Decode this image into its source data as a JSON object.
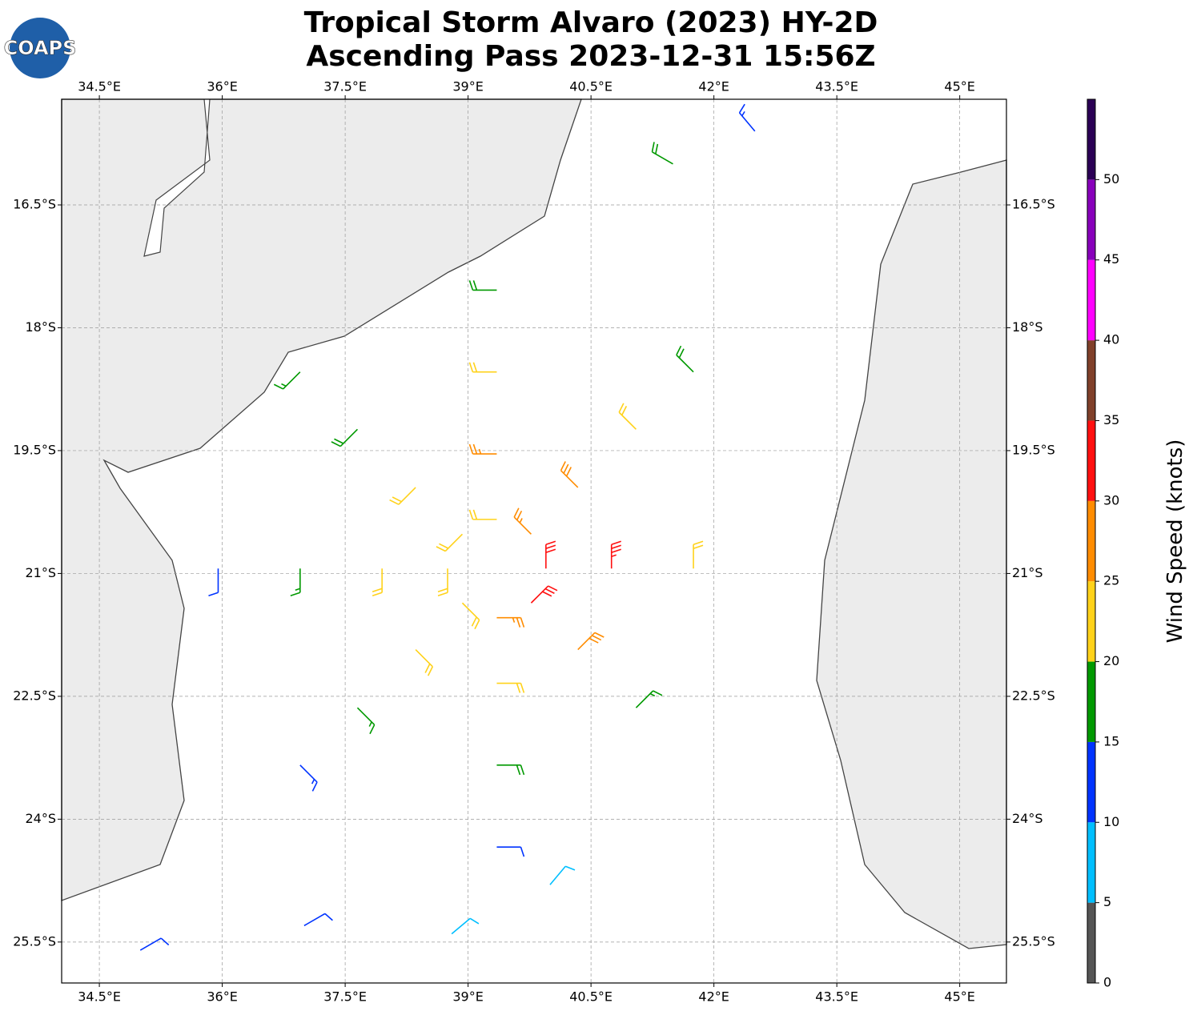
{
  "map": {
    "title": [
      "Tropical Storm Alvaro (2023) HY-2D",
      "Ascending Pass 2023-12-31 15:56Z"
    ],
    "logo_text": "COAPS",
    "xlim": [
      34.04,
      45.57
    ],
    "ylim": [
      -26.0,
      -15.21
    ],
    "xticks": [
      {
        "value": 34.5,
        "label": "34.5°E"
      },
      {
        "value": 36,
        "label": "36°E"
      },
      {
        "value": 37.5,
        "label": "37.5°E"
      },
      {
        "value": 39,
        "label": "39°E"
      },
      {
        "value": 40.5,
        "label": "40.5°E"
      },
      {
        "value": 42,
        "label": "42°E"
      },
      {
        "value": 43.5,
        "label": "43.5°E"
      },
      {
        "value": 45,
        "label": "45°E"
      }
    ],
    "yticks": [
      {
        "value": -16.5,
        "label": "16.5°S"
      },
      {
        "value": -18,
        "label": "18°S"
      },
      {
        "value": -19.5,
        "label": "19.5°S"
      },
      {
        "value": -21,
        "label": "21°S"
      },
      {
        "value": -22.5,
        "label": "22.5°S"
      },
      {
        "value": -24,
        "label": "24°S"
      },
      {
        "value": -25.5,
        "label": "25.5°S"
      }
    ],
    "grid": true,
    "colorbar": {
      "label": "Wind Speed (knots)",
      "bounds": [
        0,
        5,
        10,
        15,
        20,
        25,
        30,
        35,
        40,
        45,
        50,
        55
      ],
      "colors": [
        "#555555",
        "#00bfff",
        "#0033ff",
        "#009900",
        "#ffd21a",
        "#ff8c00",
        "#ff1010",
        "#80402a",
        "#ff00ff",
        "#8800bb",
        "#2b0055"
      ],
      "ticks": [
        0,
        5,
        10,
        15,
        20,
        25,
        30,
        35,
        40,
        45,
        50
      ]
    },
    "barbs": {
      "lon": [
        39.95,
        39.77,
        39.35,
        38.93,
        38.75,
        38.93,
        39.35,
        39.77,
        40.75,
        40.34,
        39.35,
        38.36,
        37.95,
        38.36,
        39.35,
        40.34,
        41.75,
        41.05,
        39.35,
        37.65,
        36.95,
        37.65,
        39.35,
        41.05,
        41.75,
        39.35,
        36.95,
        35.95,
        36.95,
        39.35,
        41.5,
        42.5,
        37.0,
        35.0,
        38.8,
        40.0
      ],
      "lat": [
        -20.94,
        -20.52,
        -20.34,
        -20.52,
        -20.94,
        -21.36,
        -21.54,
        -21.36,
        -20.94,
        -19.95,
        -19.54,
        -19.95,
        -20.94,
        -21.93,
        -22.34,
        -21.93,
        -20.94,
        -19.24,
        -18.54,
        -19.24,
        -20.94,
        -22.64,
        -23.34,
        -22.64,
        -18.54,
        -17.54,
        -18.54,
        -20.94,
        -23.34,
        -24.34,
        -16.0,
        -15.6,
        -25.3,
        -25.6,
        -25.4,
        -24.8
      ],
      "speed": [
        30,
        27,
        22,
        22,
        20,
        22,
        25,
        32,
        33,
        28,
        25,
        22,
        22,
        20,
        22,
        28,
        22,
        22,
        22,
        18,
        17,
        17,
        18,
        16,
        18,
        18,
        16,
        12,
        14,
        12,
        18,
        13,
        12,
        12,
        8,
        8
      ],
      "direction": [
        0,
        315,
        270,
        225,
        180,
        135,
        90,
        45,
        0,
        315,
        270,
        225,
        180,
        135,
        90,
        45,
        0,
        315,
        270,
        225,
        180,
        135,
        90,
        45,
        315,
        270,
        225,
        180,
        135,
        90,
        300,
        320,
        60,
        60,
        50,
        40
      ]
    }
  }
}
